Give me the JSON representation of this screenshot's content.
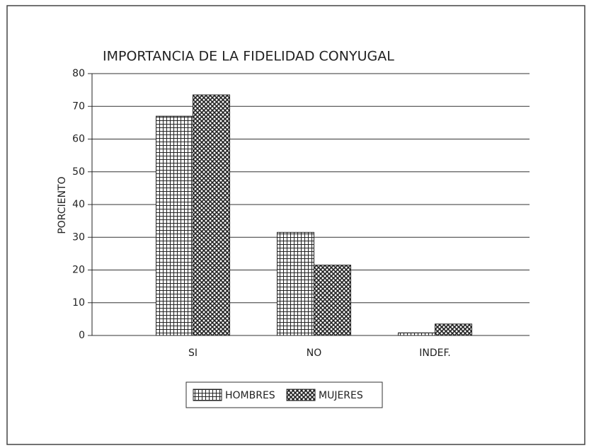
{
  "chart_data": {
    "type": "bar",
    "title": "IMPORTANCIA DE LA FIDELIDAD CONYUGAL",
    "y_label": "PORCIENTO",
    "categories": [
      "SI",
      "NO",
      "INDEF."
    ],
    "series": [
      {
        "name": "HOMBRES",
        "color": "#222222",
        "pattern": "grid",
        "values": [
          67,
          31.5,
          0.8
        ]
      },
      {
        "name": "MUJERES",
        "color": "#222222",
        "pattern": "crosshatch",
        "values": [
          73.5,
          21.5,
          3.5
        ]
      }
    ],
    "ylim": [
      0,
      80
    ],
    "yticks": [
      0,
      10,
      20,
      30,
      40,
      50,
      60,
      70,
      80
    ],
    "grid": true,
    "legend": "bottom"
  }
}
